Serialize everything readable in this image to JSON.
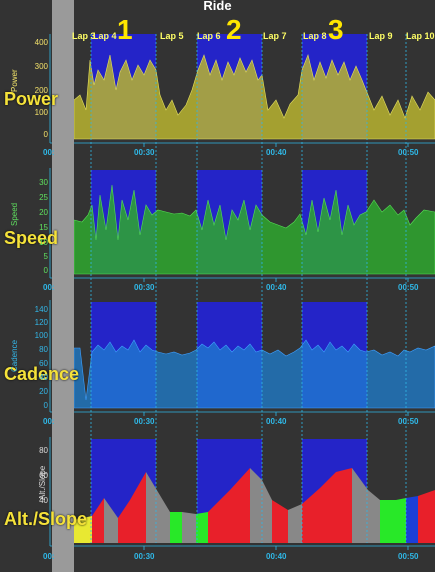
{
  "title": "Ride",
  "panels": {
    "power": {
      "label": "Power",
      "axis": "Power",
      "ticks": [
        "400",
        "300",
        "200",
        "100",
        "0"
      ]
    },
    "speed": {
      "label": "Speed",
      "axis": "Speed",
      "ticks": [
        "30",
        "25",
        "20",
        "15",
        "10",
        "5",
        "0"
      ]
    },
    "cadence": {
      "label": "Cadence",
      "axis": "Cadence",
      "ticks": [
        "140",
        "120",
        "100",
        "80",
        "60",
        "40",
        "20",
        "0"
      ]
    },
    "alt": {
      "label": "Alt./Slope",
      "axis": "Alt./Slope",
      "ticks": [
        "80",
        "60",
        "40"
      ]
    }
  },
  "laps": [
    "Lap 3",
    "Lap 4",
    "Lap 5",
    "Lap 6",
    "Lap 7",
    "Lap 8",
    "Lap 9",
    "Lap 10"
  ],
  "lap_numbers": [
    "1",
    "2",
    "3"
  ],
  "xticks": [
    "00:",
    "00:30",
    "00:40",
    "00:50"
  ],
  "colors": {
    "highlight": "#2424c8",
    "power": "#b8b430",
    "speed": "#2fa82f",
    "cadence": "#1f7fd0",
    "grid": "#2fb7e6",
    "background": "#333333"
  }
}
